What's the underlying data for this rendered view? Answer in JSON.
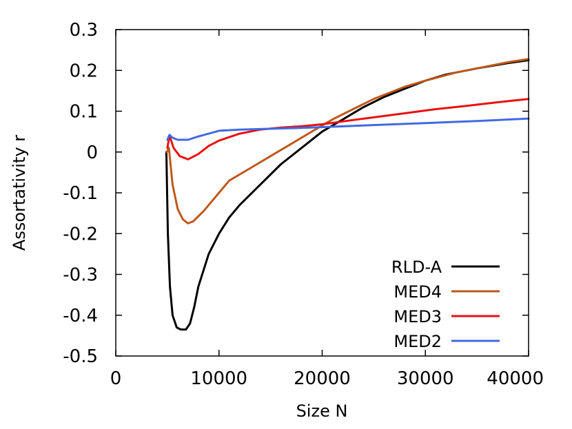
{
  "chart_data": {
    "type": "line",
    "title": "",
    "xlabel": "Size N",
    "ylabel": "Assortativity r",
    "xlim": [
      0,
      40000
    ],
    "ylim": [
      -0.5,
      0.3
    ],
    "x_ticks": [
      0,
      10000,
      20000,
      30000,
      40000
    ],
    "x_tick_labels": [
      "0",
      "10000",
      "20000",
      "30000",
      "40000"
    ],
    "y_ticks": [
      0.3,
      0.2,
      0.1,
      0,
      -0.1,
      -0.2,
      -0.3,
      -0.4,
      -0.5
    ],
    "y_tick_labels": [
      "0.3",
      "0.2",
      "0.1",
      "0",
      "-0.1",
      "-0.2",
      "-0.3",
      "-0.4",
      "-0.5"
    ],
    "grid": false,
    "legend_position": "bottom-right",
    "series": [
      {
        "name": "RLD-A",
        "color": "#000000",
        "points": [
          [
            4900,
            0.0
          ],
          [
            5050,
            -0.2
          ],
          [
            5250,
            -0.33
          ],
          [
            5500,
            -0.4
          ],
          [
            5900,
            -0.43
          ],
          [
            6300,
            -0.435
          ],
          [
            6800,
            -0.435
          ],
          [
            7200,
            -0.42
          ],
          [
            7600,
            -0.38
          ],
          [
            8000,
            -0.33
          ],
          [
            9000,
            -0.25
          ],
          [
            10000,
            -0.2
          ],
          [
            11000,
            -0.16
          ],
          [
            12000,
            -0.13
          ],
          [
            14000,
            -0.08
          ],
          [
            16000,
            -0.03
          ],
          [
            18000,
            0.01
          ],
          [
            20000,
            0.05
          ],
          [
            22000,
            0.08
          ],
          [
            24000,
            0.11
          ],
          [
            26000,
            0.135
          ],
          [
            28000,
            0.155
          ],
          [
            30000,
            0.175
          ],
          [
            32000,
            0.19
          ],
          [
            35000,
            0.205
          ],
          [
            38000,
            0.218
          ],
          [
            40000,
            0.225
          ]
        ]
      },
      {
        "name": "MED4",
        "color": "#c0571a",
        "points": [
          [
            4950,
            0.0
          ],
          [
            5150,
            0.01
          ],
          [
            5500,
            -0.08
          ],
          [
            6000,
            -0.14
          ],
          [
            6500,
            -0.165
          ],
          [
            7000,
            -0.175
          ],
          [
            7500,
            -0.17
          ],
          [
            8500,
            -0.145
          ],
          [
            9500,
            -0.115
          ],
          [
            11000,
            -0.07
          ],
          [
            13000,
            -0.04
          ],
          [
            15000,
            -0.01
          ],
          [
            17000,
            0.02
          ],
          [
            19000,
            0.05
          ],
          [
            21000,
            0.08
          ],
          [
            23000,
            0.105
          ],
          [
            25000,
            0.13
          ],
          [
            28000,
            0.16
          ],
          [
            30000,
            0.175
          ],
          [
            33000,
            0.195
          ],
          [
            36000,
            0.21
          ],
          [
            38000,
            0.22
          ],
          [
            40000,
            0.228
          ]
        ]
      },
      {
        "name": "MED3",
        "color": "#e81010",
        "points": [
          [
            5000,
            0.01
          ],
          [
            5200,
            0.04
          ],
          [
            5600,
            0.01
          ],
          [
            6200,
            -0.01
          ],
          [
            7000,
            -0.018
          ],
          [
            8000,
            -0.005
          ],
          [
            9000,
            0.015
          ],
          [
            10000,
            0.028
          ],
          [
            12000,
            0.045
          ],
          [
            14000,
            0.055
          ],
          [
            16000,
            0.06
          ],
          [
            18000,
            0.063
          ],
          [
            20000,
            0.068
          ],
          [
            22000,
            0.075
          ],
          [
            25000,
            0.085
          ],
          [
            28000,
            0.095
          ],
          [
            31000,
            0.105
          ],
          [
            34000,
            0.113
          ],
          [
            37000,
            0.122
          ],
          [
            40000,
            0.13
          ]
        ]
      },
      {
        "name": "MED2",
        "color": "#4169e1",
        "points": [
          [
            5000,
            0.03
          ],
          [
            5200,
            0.042
          ],
          [
            5500,
            0.035
          ],
          [
            6000,
            0.03
          ],
          [
            7000,
            0.03
          ],
          [
            8000,
            0.038
          ],
          [
            9000,
            0.045
          ],
          [
            10000,
            0.052
          ],
          [
            12000,
            0.055
          ],
          [
            15000,
            0.057
          ],
          [
            18000,
            0.059
          ],
          [
            20000,
            0.061
          ],
          [
            25000,
            0.066
          ],
          [
            30000,
            0.071
          ],
          [
            35000,
            0.076
          ],
          [
            40000,
            0.082
          ]
        ]
      }
    ]
  }
}
